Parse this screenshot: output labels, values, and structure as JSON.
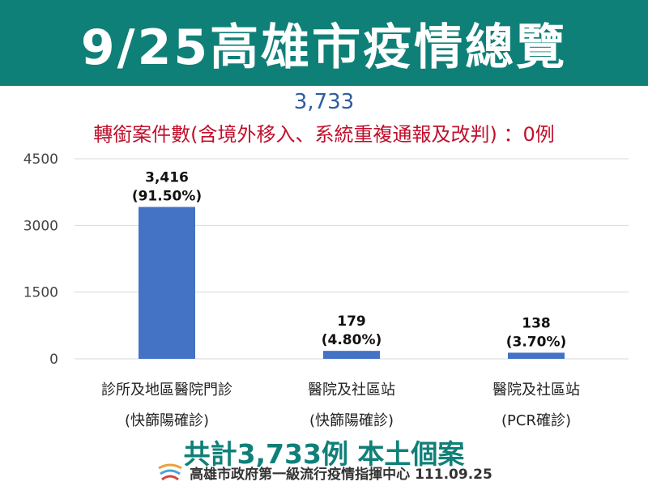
{
  "header": {
    "title": "9/25高雄市疫情總覽"
  },
  "total_value": "3,733",
  "subtitle": "轉銜案件數(含境外移入、系統重複通報及改判) ：0例",
  "summary": "共計3,733例 本土個案",
  "footer": {
    "text": "高雄市政府第一級流行疫情指揮中心 111.09.25",
    "logo_icon": "kaohsiung-city-logo"
  },
  "colors": {
    "banner": "#0f8078",
    "bar": "#4472c4",
    "subtitle": "#c0102c",
    "total": "#2f5d9e",
    "summary": "#0f8078"
  },
  "chart_data": {
    "type": "bar",
    "categories": [
      [
        "診所及地區醫院門診",
        "(快篩陽確診)"
      ],
      [
        "醫院及社區站",
        "(快篩陽確診)"
      ],
      [
        "醫院及社區站",
        "(PCR確診)"
      ]
    ],
    "values": [
      3416,
      179,
      138
    ],
    "value_labels": [
      "3,416",
      "179",
      "138"
    ],
    "percent_labels": [
      "(91.50%)",
      "(4.80%)",
      "(3.70%)"
    ],
    "yticks": [
      "0",
      "1500",
      "3000",
      "4500"
    ],
    "ylim": [
      0,
      4500
    ],
    "grid": true
  }
}
